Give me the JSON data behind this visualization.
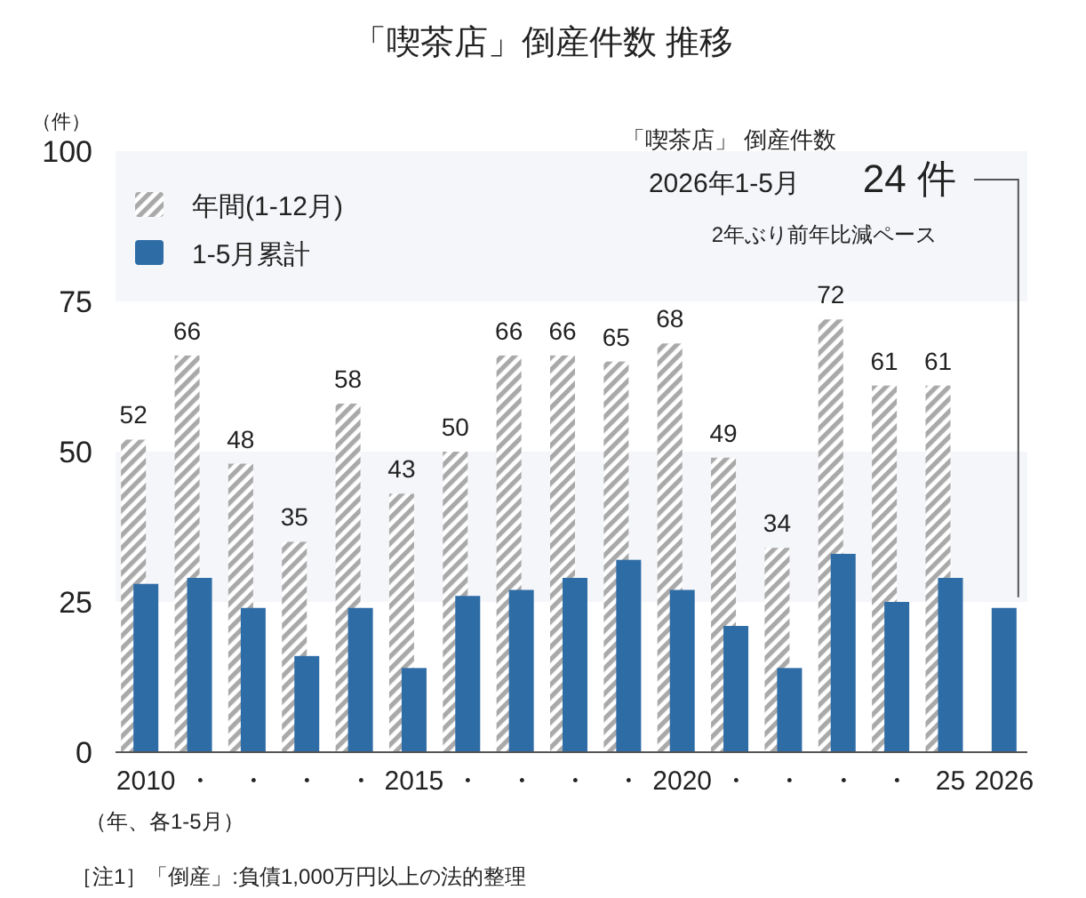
{
  "chart_data": {
    "type": "bar",
    "title": "「喫茶店」倒産件数 推移",
    "ylabel": "（件）",
    "categories": [
      "2010",
      "・",
      "・",
      "・",
      "・",
      "2015",
      "・",
      "・",
      "・",
      "・",
      "2020",
      "・",
      "・",
      "・",
      "・",
      "25",
      "2026"
    ],
    "series": [
      {
        "name": "年間(1-12月)",
        "color": "#a9a9a9",
        "values": [
          52,
          66,
          48,
          35,
          58,
          43,
          50,
          66,
          66,
          65,
          68,
          49,
          34,
          72,
          61,
          61,
          null
        ],
        "value_labels": [
          "52",
          "66",
          "48",
          "35",
          "58",
          "43",
          "50",
          "66",
          "66",
          "65",
          "68",
          "49",
          "34",
          "72",
          "61",
          "61",
          null
        ]
      },
      {
        "name": "1-5月累計",
        "color": "#2e6ca6",
        "values": [
          28,
          29,
          24,
          16,
          24,
          14,
          26,
          27,
          29,
          32,
          27,
          21,
          14,
          33,
          25,
          29,
          24
        ]
      }
    ],
    "ylim": [
      0,
      100
    ],
    "yticks": [
      0,
      25,
      50,
      75,
      100
    ],
    "grid": false,
    "legend": "top left",
    "bands": [
      {
        "axis": "y",
        "from": 25,
        "to": 50,
        "color": "#f4f6f9"
      },
      {
        "axis": "y",
        "from": 75,
        "to": 100,
        "color": "#f4f6f9"
      }
    ],
    "annotations": [
      "「喫茶店」 倒産件数",
      "2026年1-5月",
      "24 件",
      "2年ぶり前年比減ペース",
      "（年、各1-5月）",
      "［注1］「倒産」:負債1,000万円以上の法的整理"
    ]
  }
}
